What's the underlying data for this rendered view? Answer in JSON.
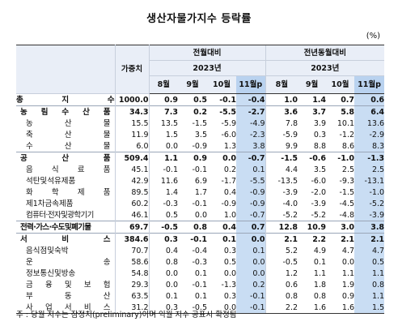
{
  "title": "생산자물가지수 등락률",
  "unit": "(%)",
  "header": {
    "weight": "가중치",
    "mom": "전월대비",
    "yoy": "전년동월대비",
    "year_mom": "2023년",
    "year_yoy": "2023년",
    "months": [
      "8월",
      "9월",
      "10월",
      "11월p"
    ]
  },
  "rows": [
    {
      "label": "총 지 수",
      "weight": "1000.0",
      "mom": [
        "0.9",
        "0.5",
        "-0.1",
        "-0.4"
      ],
      "yoy": [
        "1.0",
        "1.4",
        "0.7",
        "0.6"
      ]
    },
    {
      "label": "농 림 수 산 품",
      "weight": "34.3",
      "mom": [
        "7.3",
        "0.2",
        "-5.5",
        "-2.7"
      ],
      "yoy": [
        "3.6",
        "3.7",
        "5.8",
        "6.4"
      ]
    },
    {
      "label": "농 산 물",
      "weight": "15.5",
      "mom": [
        "13.5",
        "-1.5",
        "-5.9",
        "-4.9"
      ],
      "yoy": [
        "7.8",
        "3.9",
        "10.1",
        "13.6"
      ]
    },
    {
      "label": "축 산 물",
      "weight": "11.9",
      "mom": [
        "1.5",
        "3.5",
        "-6.0",
        "-2.3"
      ],
      "yoy": [
        "-5.9",
        "0.3",
        "-1.2",
        "-2.9"
      ]
    },
    {
      "label": "수 산 물",
      "weight": "6.0",
      "mom": [
        "0.0",
        "-0.9",
        "1.3",
        "3.8"
      ],
      "yoy": [
        "9.9",
        "8.8",
        "8.6",
        "8.3"
      ]
    },
    {
      "label": "공 산 품",
      "weight": "509.4",
      "mom": [
        "1.1",
        "0.9",
        "0.0",
        "-0.7"
      ],
      "yoy": [
        "-1.5",
        "-0.6",
        "-1.0",
        "-1.3"
      ]
    },
    {
      "label": "음 식 료 품",
      "weight": "45.1",
      "mom": [
        "-0.1",
        "-0.1",
        "0.2",
        "0.1"
      ],
      "yoy": [
        "4.4",
        "3.5",
        "2.5",
        "2.5"
      ]
    },
    {
      "label": "석탄및석유제품",
      "weight": "42.9",
      "mom": [
        "11.6",
        "6.9",
        "-1.7",
        "-5.5"
      ],
      "yoy": [
        "-13.5",
        "-6.0",
        "-9.3",
        "-13.1"
      ]
    },
    {
      "label": "화 학 제 품",
      "weight": "89.5",
      "mom": [
        "1.4",
        "1.7",
        "0.4",
        "-0.9"
      ],
      "yoy": [
        "-3.9",
        "-2.0",
        "-1.5",
        "-1.0"
      ]
    },
    {
      "label": "제1차금속제품",
      "weight": "60.2",
      "mom": [
        "-0.3",
        "-0.1",
        "-0.9",
        "-0.9"
      ],
      "yoy": [
        "-4.0",
        "-3.9",
        "-4.5",
        "-5.2"
      ]
    },
    {
      "label": "컴퓨터·전자및광학기기",
      "weight": "46.1",
      "mom": [
        "0.5",
        "0.0",
        "1.0",
        "-0.7"
      ],
      "yoy": [
        "-5.2",
        "-5.2",
        "-4.8",
        "-3.9"
      ]
    },
    {
      "label": "전력·가스·수도및폐기물",
      "weight": "69.7",
      "mom": [
        "-0.5",
        "0.8",
        "0.4",
        "0.7"
      ],
      "yoy": [
        "12.8",
        "10.9",
        "3.0",
        "3.8"
      ]
    },
    {
      "label": "서 비 스",
      "weight": "384.6",
      "mom": [
        "0.3",
        "-0.1",
        "0.1",
        "0.0"
      ],
      "yoy": [
        "2.1",
        "2.2",
        "2.1",
        "2.1"
      ]
    },
    {
      "label": "음식점및숙박",
      "weight": "70.7",
      "mom": [
        "0.4",
        "-0.4",
        "0.3",
        "0.1"
      ],
      "yoy": [
        "5.2",
        "4.9",
        "4.7",
        "4.7"
      ]
    },
    {
      "label": "운 송",
      "weight": "58.6",
      "mom": [
        "0.8",
        "-0.3",
        "0.5",
        "0.0"
      ],
      "yoy": [
        "-0.5",
        "0.1",
        "0.0",
        "0.5"
      ]
    },
    {
      "label": "정보통신및방송",
      "weight": "54.8",
      "mom": [
        "0.0",
        "0.1",
        "0.0",
        "0.0"
      ],
      "yoy": [
        "1.2",
        "1.1",
        "1.1",
        "1.1"
      ]
    },
    {
      "label": "금 융 및 보 험",
      "weight": "29.3",
      "mom": [
        "0.0",
        "-0.1",
        "-1.3",
        "0.2"
      ],
      "yoy": [
        "0.6",
        "1.8",
        "1.9",
        "0.8"
      ]
    },
    {
      "label": "부 동 산",
      "weight": "63.5",
      "mom": [
        "0.1",
        "0.1",
        "0.3",
        "-0.1"
      ],
      "yoy": [
        "0.8",
        "0.8",
        "0.9",
        "1.1"
      ]
    },
    {
      "label": "사 업 서 비 스",
      "weight": "31.2",
      "mom": [
        "0.3",
        "-0.5",
        "0.0",
        "-0.1"
      ],
      "yoy": [
        "2.2",
        "1.6",
        "1.6",
        "1.5"
      ]
    }
  ],
  "note": "주 : 당월 지수는 잠정치(preliminary)이며 익월 지수 공표시 확정됨"
}
